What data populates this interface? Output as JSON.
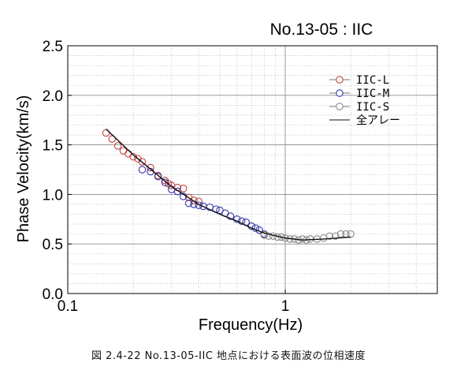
{
  "chart_data": {
    "type": "scatter",
    "title": "No.13-05 : IIC",
    "xlabel": "Frequency(Hz)",
    "ylabel": "Phase Velocity(km/s)",
    "xscale": "log",
    "xlim": [
      0.1,
      5
    ],
    "ylim": [
      0.0,
      2.5
    ],
    "x_ticks": [
      0.1,
      1
    ],
    "x_tick_labels": [
      "0.1",
      "1"
    ],
    "y_ticks": [
      0.0,
      0.5,
      1.0,
      1.5,
      2.0,
      2.5
    ],
    "y_tick_labels": [
      "0.0",
      "0.5",
      "1.0",
      "1.5",
      "2.0",
      "2.5"
    ],
    "grid": true,
    "legend_position": "top-right",
    "series": [
      {
        "name": "IIC-L",
        "color": "#c44444",
        "marker": "open-circle",
        "points": [
          [
            0.15,
            1.62
          ],
          [
            0.16,
            1.56
          ],
          [
            0.17,
            1.49
          ],
          [
            0.18,
            1.44
          ],
          [
            0.19,
            1.41
          ],
          [
            0.2,
            1.38
          ],
          [
            0.21,
            1.36
          ],
          [
            0.22,
            1.33
          ],
          [
            0.24,
            1.27
          ],
          [
            0.26,
            1.19
          ],
          [
            0.28,
            1.14
          ],
          [
            0.29,
            1.11
          ],
          [
            0.3,
            1.09
          ],
          [
            0.32,
            1.07
          ],
          [
            0.34,
            1.06
          ],
          [
            0.36,
            0.97
          ],
          [
            0.38,
            0.94
          ],
          [
            0.4,
            0.93
          ]
        ]
      },
      {
        "name": "IIC-M",
        "color": "#3636a8",
        "marker": "open-circle",
        "points": [
          [
            0.22,
            1.25
          ],
          [
            0.24,
            1.23
          ],
          [
            0.26,
            1.18
          ],
          [
            0.28,
            1.12
          ],
          [
            0.3,
            1.05
          ],
          [
            0.32,
            1.03
          ],
          [
            0.34,
            0.98
          ],
          [
            0.36,
            0.91
          ],
          [
            0.38,
            0.9
          ],
          [
            0.4,
            0.89
          ],
          [
            0.42,
            0.88
          ],
          [
            0.45,
            0.87
          ],
          [
            0.48,
            0.85
          ],
          [
            0.5,
            0.84
          ],
          [
            0.53,
            0.81
          ],
          [
            0.56,
            0.78
          ],
          [
            0.6,
            0.75
          ],
          [
            0.63,
            0.73
          ],
          [
            0.66,
            0.72
          ],
          [
            0.7,
            0.68
          ],
          [
            0.73,
            0.66
          ],
          [
            0.76,
            0.64
          ],
          [
            0.8,
            0.6
          ]
        ]
      },
      {
        "name": "IIC-S",
        "color": "#888888",
        "marker": "open-circle",
        "points": [
          [
            0.8,
            0.59
          ],
          [
            0.84,
            0.58
          ],
          [
            0.88,
            0.58
          ],
          [
            0.92,
            0.57
          ],
          [
            0.96,
            0.57
          ],
          [
            1.0,
            0.56
          ],
          [
            1.05,
            0.55
          ],
          [
            1.1,
            0.55
          ],
          [
            1.15,
            0.54
          ],
          [
            1.2,
            0.55
          ],
          [
            1.25,
            0.54
          ],
          [
            1.3,
            0.55
          ],
          [
            1.4,
            0.55
          ],
          [
            1.5,
            0.56
          ],
          [
            1.6,
            0.58
          ],
          [
            1.7,
            0.58
          ],
          [
            1.8,
            0.6
          ],
          [
            1.9,
            0.6
          ],
          [
            2.0,
            0.6
          ]
        ]
      },
      {
        "name": "全アレー",
        "color": "#111111",
        "marker": "line",
        "points": [
          [
            0.15,
            1.66
          ],
          [
            0.2,
            1.4
          ],
          [
            0.3,
            1.08
          ],
          [
            0.4,
            0.9
          ],
          [
            0.5,
            0.8
          ],
          [
            0.6,
            0.73
          ],
          [
            0.7,
            0.66
          ],
          [
            0.8,
            0.61
          ],
          [
            1.0,
            0.56
          ],
          [
            1.2,
            0.54
          ],
          [
            1.5,
            0.55
          ],
          [
            2.0,
            0.57
          ]
        ]
      }
    ]
  },
  "caption": "図 2.4-22  No.13-05-IIC 地点における表面波の位相速度"
}
